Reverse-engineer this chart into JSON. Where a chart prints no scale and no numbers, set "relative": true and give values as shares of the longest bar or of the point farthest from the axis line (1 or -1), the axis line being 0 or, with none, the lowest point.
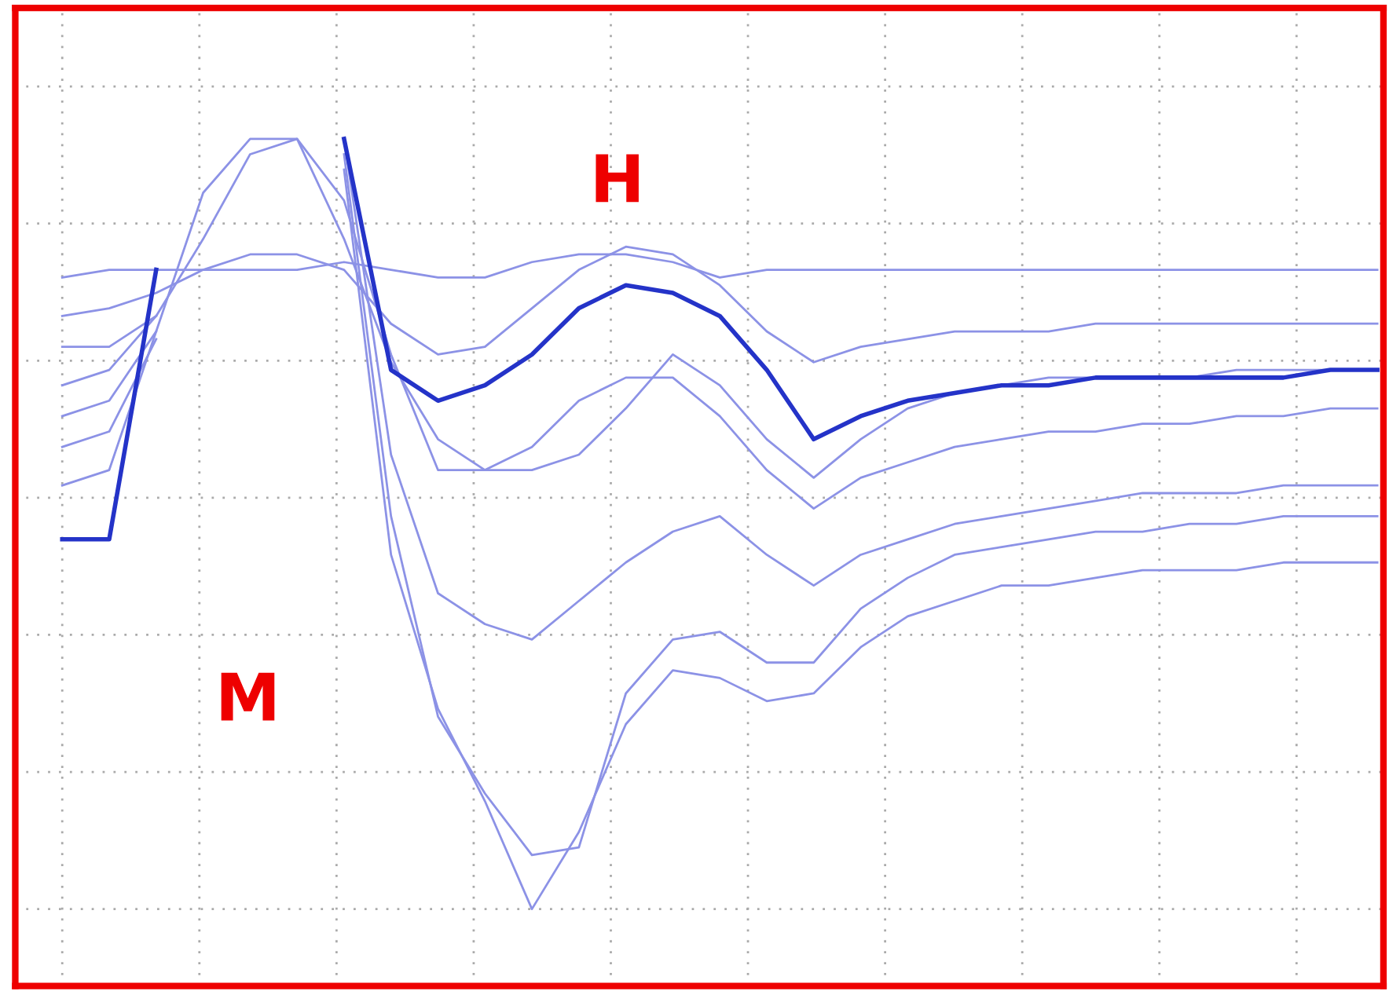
{
  "chart_data": {
    "type": "line",
    "relative": true,
    "grid": true,
    "legend": false,
    "marker": "none",
    "line_style": "solid",
    "categories": [
      null,
      null,
      null,
      null,
      null,
      null,
      null,
      null,
      null,
      null,
      null,
      null,
      null,
      null,
      null,
      null,
      null,
      null,
      null,
      null,
      null,
      null,
      null,
      null,
      null,
      null,
      null,
      null,
      null
    ],
    "annotations": [
      "M",
      "H"
    ],
    "series": [
      {
        "color": "#8c92e6",
        "values": [
          0.82,
          0.83,
          0.83,
          0.83,
          0.83,
          0.83,
          0.84,
          0.83,
          0.82,
          0.82,
          0.84,
          0.85,
          0.85,
          0.84,
          0.82,
          0.83,
          0.83,
          0.83,
          0.83,
          0.83,
          0.83,
          0.83,
          0.83,
          0.83,
          0.83,
          0.83,
          0.83,
          0.83,
          0.83
        ]
      },
      {
        "color": "#8c92e6",
        "values": [
          0.77,
          0.78,
          0.8,
          0.83,
          0.85,
          0.85,
          0.83,
          0.76,
          0.72,
          0.73,
          0.78,
          0.83,
          0.86,
          0.85,
          0.81,
          0.75,
          0.71,
          0.73,
          0.74,
          0.75,
          0.75,
          0.75,
          0.76,
          0.76,
          0.76,
          0.76,
          0.76,
          0.76,
          0.76
        ]
      },
      {
        "color": "#8c92e6",
        "values": [
          0.73,
          0.73,
          0.77,
          0.87,
          0.98,
          1.0,
          0.92,
          0.72,
          0.57,
          0.57,
          0.6,
          0.66,
          0.69,
          0.69,
          0.64,
          0.57,
          0.52,
          0.56,
          0.58,
          0.6,
          0.61,
          0.62,
          0.62,
          0.63,
          0.63,
          0.64,
          0.64,
          0.65,
          0.65
        ]
      },
      {
        "color": "#8c92e6",
        "values": [
          0.55,
          0.57,
          0.75,
          0.93,
          1.0,
          1.0,
          0.87,
          0.71,
          0.61,
          0.57,
          0.57,
          0.59,
          0.65,
          0.72,
          0.68,
          0.61,
          0.56,
          0.61,
          0.65,
          0.67,
          0.68,
          0.69,
          0.69,
          0.69,
          0.69,
          0.7,
          0.7,
          0.7,
          0.7
        ]
      },
      {
        "color": "#8c92e6",
        "values": [
          0.68,
          0.7,
          0.77,
          null,
          null,
          null,
          1.0,
          0.59,
          0.41,
          0.37,
          0.35,
          0.4,
          0.45,
          0.49,
          0.51,
          0.46,
          0.42,
          0.46,
          0.48,
          0.5,
          0.51,
          0.52,
          0.53,
          0.54,
          0.54,
          0.54,
          0.55,
          0.55,
          0.55
        ]
      },
      {
        "color": "#8c92e6",
        "values": [
          0.64,
          0.66,
          0.75,
          null,
          null,
          null,
          0.98,
          0.51,
          0.25,
          0.15,
          0.07,
          0.08,
          0.28,
          0.35,
          0.36,
          0.32,
          0.32,
          0.39,
          0.43,
          0.46,
          0.47,
          0.48,
          0.49,
          0.49,
          0.5,
          0.5,
          0.51,
          0.51,
          0.51
        ]
      },
      {
        "color": "#8c92e6",
        "values": [
          0.6,
          0.62,
          0.74,
          null,
          null,
          null,
          0.96,
          0.46,
          0.26,
          0.14,
          0.0,
          0.1,
          0.24,
          0.31,
          0.3,
          0.27,
          0.28,
          0.34,
          0.38,
          0.4,
          0.42,
          0.42,
          0.43,
          0.44,
          0.44,
          0.44,
          0.45,
          0.45,
          0.45
        ]
      },
      {
        "color": "#2433c8",
        "values": [
          0.48,
          0.48,
          0.83,
          null,
          null,
          null,
          1.0,
          0.7,
          0.66,
          0.68,
          0.72,
          0.78,
          0.81,
          0.8,
          0.77,
          0.7,
          0.61,
          0.64,
          0.66,
          0.67,
          0.68,
          0.68,
          0.69,
          0.69,
          0.69,
          0.69,
          0.69,
          0.7,
          0.7
        ]
      }
    ]
  }
}
